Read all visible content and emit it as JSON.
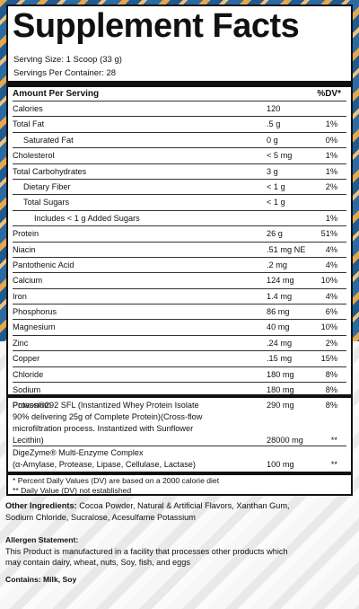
{
  "title": "Supplement Facts",
  "serving_size": "Serving Size: 1 Scoop (33 g)",
  "servings_per_container": "Servings Per Container: 28",
  "header": {
    "amount_per_serving": "Amount Per Serving",
    "dv": "%DV*"
  },
  "nutrients": [
    {
      "name": "Calories",
      "amount": "120",
      "dv": "",
      "indent": 0
    },
    {
      "name": "Total Fat",
      "amount": ".5 g",
      "dv": "1%",
      "indent": 0
    },
    {
      "name": "Saturated Fat",
      "amount": "0 g",
      "dv": "0%",
      "indent": 1
    },
    {
      "name": "Cholesterol",
      "amount": "< 5 mg",
      "dv": "1%",
      "indent": 0
    },
    {
      "name": "Total Carbohydrates",
      "amount": "3 g",
      "dv": "1%",
      "indent": 0
    },
    {
      "name": "Dietary Fiber",
      "amount": "< 1 g",
      "dv": "2%",
      "indent": 1
    },
    {
      "name": "Total Sugars",
      "amount": "< 1 g",
      "dv": "",
      "indent": 1
    },
    {
      "name": "Includes < 1 g Added Sugars",
      "amount": "",
      "dv": "1%",
      "indent": 2
    },
    {
      "name": "Protein",
      "amount": "26 g",
      "dv": "51%",
      "indent": 0
    },
    {
      "name": "Niacin",
      "amount": ".51 mg NE",
      "dv": "4%",
      "indent": 0
    },
    {
      "name": "Pantothenic Acid",
      "amount": ".2 mg",
      "dv": "4%",
      "indent": 0
    },
    {
      "name": "Calcium",
      "amount": "124 mg",
      "dv": "10%",
      "indent": 0
    },
    {
      "name": "Iron",
      "amount": "1.4 mg",
      "dv": "4%",
      "indent": 0
    },
    {
      "name": "Phosphorus",
      "amount": "86 mg",
      "dv": "6%",
      "indent": 0
    },
    {
      "name": "Magnesium",
      "amount": "40 mg",
      "dv": "10%",
      "indent": 0
    },
    {
      "name": "Zinc",
      "amount": ".24 mg",
      "dv": "2%",
      "indent": 0
    },
    {
      "name": "Copper",
      "amount": ".15 mg",
      "dv": "15%",
      "indent": 0
    },
    {
      "name": "Chloride",
      "amount": "180 mg",
      "dv": "8%",
      "indent": 0
    },
    {
      "name": "Sodium",
      "amount": "180 mg",
      "dv": "8%",
      "indent": 0
    },
    {
      "name": "Potassium",
      "amount": "290 mg",
      "dv": "8%",
      "indent": 0
    }
  ],
  "blend1": {
    "lines": [
      "Provon®292 SFL (Instantized Whey Protein Isolate",
      "90% delivering 25g of Complete Protein)(Cross-flow",
      "microfiltration process. Instantized with Sunflower",
      "Lecithin)"
    ],
    "amount": "28000 mg",
    "dv": "**"
  },
  "blend2": {
    "lines": [
      "DigeZyme® Multi-Enzyme Complex",
      "(α-Amylase, Protease, Lipase, Cellulase, Lactase)"
    ],
    "amount": "100 mg",
    "dv": "**"
  },
  "footnote1": "* Percent Daily Values (DV) are based on a 2000 calorie diet",
  "footnote2": "** Daily Value (DV) not established",
  "other_label": "Other Ingredients:",
  "other_text": " Cocoa Powder, Natural & Artificial Flavors, Xanthan Gum,",
  "other_text2": "Sodium Chloride, Sucralose, Acesulfame Potassium",
  "allergen_label": "Allergen Statement:",
  "allergen_line1": "This Product is manufactured in a facility that processes other products which",
  "allergen_line2": "may contain dairy, wheat, nuts, Soy, fish, and eggs",
  "contains": "Contains: Milk, Soy"
}
